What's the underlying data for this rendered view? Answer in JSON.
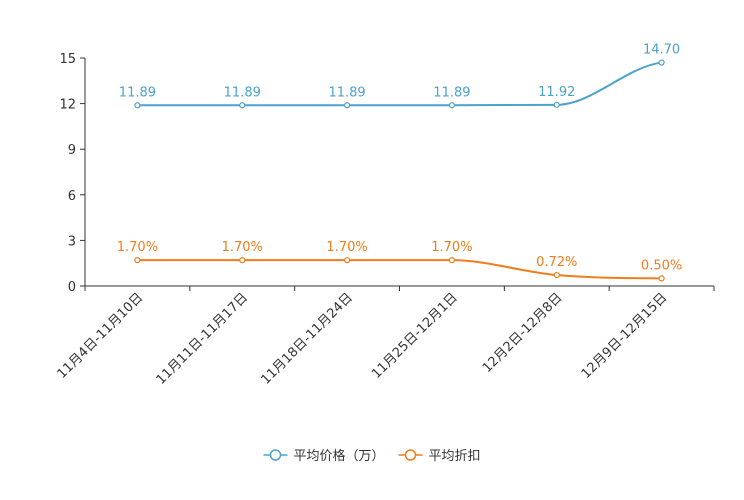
{
  "chart_data": {
    "type": "line",
    "categories": [
      "11月4日-11月10日",
      "11月11日-11月17日",
      "11月18日-11月24日",
      "11月25日-12月1日",
      "12月2日-12月8日",
      "12月9日-12月15日"
    ],
    "y_ticks": [
      "0",
      "3",
      "6",
      "9",
      "12",
      "15"
    ],
    "ylim": [
      0,
      15
    ],
    "series": [
      {
        "name": "平均价格（万）",
        "color": "#4ba2cc",
        "values": [
          11.89,
          11.89,
          11.89,
          11.89,
          11.92,
          14.7
        ],
        "labels": [
          "11.89",
          "11.89",
          "11.89",
          "11.89",
          "11.92",
          "14.70"
        ]
      },
      {
        "name": "平均折扣",
        "color": "#f07d1a",
        "values": [
          1.7,
          1.7,
          1.7,
          1.7,
          0.72,
          0.5
        ],
        "labels": [
          "1.70%",
          "1.70%",
          "1.70%",
          "1.70%",
          "0.72%",
          "0.50%"
        ]
      }
    ],
    "legend_position": "bottom-center",
    "grid": false
  }
}
